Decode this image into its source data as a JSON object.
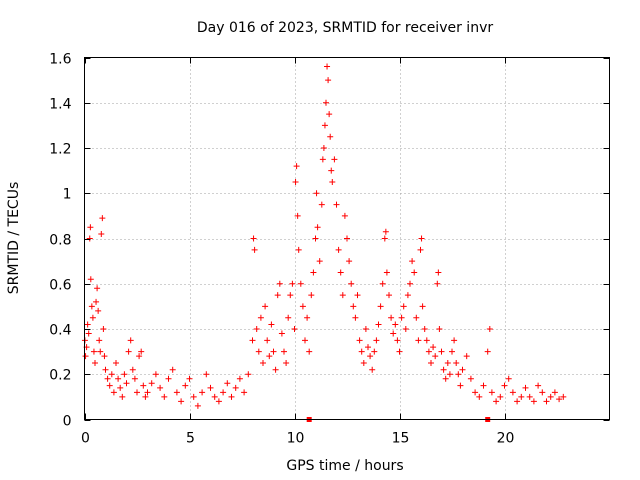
{
  "chart_data": {
    "type": "scatter",
    "title": "Day 016 of 2023, SRMTID for receiver invr",
    "xlabel": "GPS time / hours",
    "ylabel": "SRMTID / TECUs",
    "xlim": [
      0,
      25
    ],
    "ylim": [
      0,
      1.6
    ],
    "xticks": [
      0,
      5,
      10,
      15,
      20
    ],
    "xtick_labels": [
      "0",
      "5",
      "10",
      "15",
      "20"
    ],
    "yticks": [
      0,
      0.2,
      0.4,
      0.6,
      0.8,
      1.0,
      1.2,
      1.4,
      1.6
    ],
    "ytick_labels": [
      "0",
      "0.2",
      "0.4",
      "0.6",
      "0.8",
      "1",
      "1.2",
      "1.4",
      "1.6"
    ],
    "grid": true,
    "marker": "+",
    "color": "#ff0000",
    "square_markers_x": [
      10.7,
      19.2
    ],
    "series": [
      {
        "name": "SRMTID",
        "points": [
          [
            0.02,
            0.35
          ],
          [
            0.05,
            0.28
          ],
          [
            0.1,
            0.32
          ],
          [
            0.15,
            0.42
          ],
          [
            0.2,
            0.38
          ],
          [
            0.25,
            0.8
          ],
          [
            0.28,
            0.85
          ],
          [
            0.3,
            0.62
          ],
          [
            0.35,
            0.5
          ],
          [
            0.4,
            0.45
          ],
          [
            0.45,
            0.3
          ],
          [
            0.5,
            0.25
          ],
          [
            0.55,
            0.52
          ],
          [
            0.6,
            0.58
          ],
          [
            0.65,
            0.48
          ],
          [
            0.7,
            0.35
          ],
          [
            0.75,
            0.3
          ],
          [
            0.8,
            0.82
          ],
          [
            0.85,
            0.89
          ],
          [
            0.9,
            0.4
          ],
          [
            0.95,
            0.28
          ],
          [
            1.0,
            0.22
          ],
          [
            1.1,
            0.18
          ],
          [
            1.2,
            0.15
          ],
          [
            1.3,
            0.2
          ],
          [
            1.4,
            0.12
          ],
          [
            1.5,
            0.25
          ],
          [
            1.6,
            0.18
          ],
          [
            1.7,
            0.14
          ],
          [
            1.8,
            0.1
          ],
          [
            1.9,
            0.2
          ],
          [
            2.0,
            0.16
          ],
          [
            2.1,
            0.3
          ],
          [
            2.2,
            0.35
          ],
          [
            2.3,
            0.22
          ],
          [
            2.4,
            0.18
          ],
          [
            2.5,
            0.12
          ],
          [
            2.6,
            0.28
          ],
          [
            2.7,
            0.3
          ],
          [
            2.8,
            0.15
          ],
          [
            2.9,
            0.1
          ],
          [
            3.0,
            0.12
          ],
          [
            3.2,
            0.16
          ],
          [
            3.4,
            0.2
          ],
          [
            3.6,
            0.14
          ],
          [
            3.8,
            0.1
          ],
          [
            4.0,
            0.18
          ],
          [
            4.2,
            0.22
          ],
          [
            4.4,
            0.12
          ],
          [
            4.6,
            0.08
          ],
          [
            4.8,
            0.15
          ],
          [
            5.0,
            0.18
          ],
          [
            5.2,
            0.1
          ],
          [
            5.4,
            0.06
          ],
          [
            5.6,
            0.12
          ],
          [
            5.8,
            0.2
          ],
          [
            6.0,
            0.14
          ],
          [
            6.2,
            0.1
          ],
          [
            6.4,
            0.08
          ],
          [
            6.6,
            0.12
          ],
          [
            6.8,
            0.16
          ],
          [
            7.0,
            0.1
          ],
          [
            7.2,
            0.14
          ],
          [
            7.4,
            0.18
          ],
          [
            7.6,
            0.12
          ],
          [
            7.8,
            0.2
          ],
          [
            8.0,
            0.35
          ],
          [
            8.05,
            0.8
          ],
          [
            8.1,
            0.75
          ],
          [
            8.2,
            0.4
          ],
          [
            8.3,
            0.3
          ],
          [
            8.4,
            0.45
          ],
          [
            8.5,
            0.25
          ],
          [
            8.6,
            0.5
          ],
          [
            8.7,
            0.35
          ],
          [
            8.8,
            0.28
          ],
          [
            8.9,
            0.42
          ],
          [
            9.0,
            0.3
          ],
          [
            9.1,
            0.22
          ],
          [
            9.2,
            0.55
          ],
          [
            9.3,
            0.6
          ],
          [
            9.4,
            0.38
          ],
          [
            9.5,
            0.3
          ],
          [
            9.6,
            0.25
          ],
          [
            9.7,
            0.45
          ],
          [
            9.8,
            0.55
          ],
          [
            9.9,
            0.6
          ],
          [
            10.0,
            0.4
          ],
          [
            10.05,
            1.05
          ],
          [
            10.1,
            1.12
          ],
          [
            10.15,
            0.9
          ],
          [
            10.2,
            0.75
          ],
          [
            10.3,
            0.6
          ],
          [
            10.4,
            0.5
          ],
          [
            10.5,
            0.35
          ],
          [
            10.6,
            0.45
          ],
          [
            10.7,
            0.3
          ],
          [
            10.8,
            0.55
          ],
          [
            10.9,
            0.65
          ],
          [
            11.0,
            0.8
          ],
          [
            11.05,
            1.0
          ],
          [
            11.1,
            0.85
          ],
          [
            11.2,
            0.7
          ],
          [
            11.3,
            0.95
          ],
          [
            11.35,
            1.15
          ],
          [
            11.4,
            1.2
          ],
          [
            11.45,
            1.3
          ],
          [
            11.5,
            1.4
          ],
          [
            11.55,
            1.56
          ],
          [
            11.6,
            1.5
          ],
          [
            11.65,
            1.35
          ],
          [
            11.7,
            1.25
          ],
          [
            11.75,
            1.1
          ],
          [
            11.8,
            1.05
          ],
          [
            11.9,
            1.15
          ],
          [
            12.0,
            0.95
          ],
          [
            12.1,
            0.75
          ],
          [
            12.2,
            0.65
          ],
          [
            12.3,
            0.55
          ],
          [
            12.4,
            0.9
          ],
          [
            12.5,
            0.8
          ],
          [
            12.6,
            0.7
          ],
          [
            12.7,
            0.6
          ],
          [
            12.8,
            0.5
          ],
          [
            12.9,
            0.45
          ],
          [
            13.0,
            0.55
          ],
          [
            13.1,
            0.35
          ],
          [
            13.2,
            0.3
          ],
          [
            13.3,
            0.25
          ],
          [
            13.4,
            0.4
          ],
          [
            13.5,
            0.32
          ],
          [
            13.6,
            0.28
          ],
          [
            13.7,
            0.22
          ],
          [
            13.8,
            0.3
          ],
          [
            13.9,
            0.35
          ],
          [
            14.0,
            0.42
          ],
          [
            14.1,
            0.5
          ],
          [
            14.2,
            0.6
          ],
          [
            14.3,
            0.8
          ],
          [
            14.35,
            0.83
          ],
          [
            14.4,
            0.65
          ],
          [
            14.5,
            0.55
          ],
          [
            14.6,
            0.45
          ],
          [
            14.7,
            0.38
          ],
          [
            14.8,
            0.42
          ],
          [
            14.9,
            0.35
          ],
          [
            15.0,
            0.3
          ],
          [
            15.1,
            0.45
          ],
          [
            15.2,
            0.5
          ],
          [
            15.3,
            0.4
          ],
          [
            15.4,
            0.55
          ],
          [
            15.5,
            0.6
          ],
          [
            15.6,
            0.7
          ],
          [
            15.7,
            0.65
          ],
          [
            15.8,
            0.45
          ],
          [
            15.9,
            0.35
          ],
          [
            16.0,
            0.75
          ],
          [
            16.05,
            0.8
          ],
          [
            16.1,
            0.5
          ],
          [
            16.2,
            0.4
          ],
          [
            16.3,
            0.35
          ],
          [
            16.4,
            0.3
          ],
          [
            16.5,
            0.25
          ],
          [
            16.6,
            0.32
          ],
          [
            16.7,
            0.28
          ],
          [
            16.8,
            0.6
          ],
          [
            16.85,
            0.65
          ],
          [
            16.9,
            0.4
          ],
          [
            17.0,
            0.3
          ],
          [
            17.1,
            0.22
          ],
          [
            17.2,
            0.18
          ],
          [
            17.3,
            0.25
          ],
          [
            17.4,
            0.2
          ],
          [
            17.5,
            0.3
          ],
          [
            17.6,
            0.35
          ],
          [
            17.7,
            0.25
          ],
          [
            17.8,
            0.2
          ],
          [
            17.9,
            0.15
          ],
          [
            18.0,
            0.22
          ],
          [
            18.2,
            0.28
          ],
          [
            18.4,
            0.18
          ],
          [
            18.6,
            0.12
          ],
          [
            18.8,
            0.1
          ],
          [
            19.0,
            0.15
          ],
          [
            19.2,
            0.3
          ],
          [
            19.3,
            0.4
          ],
          [
            19.4,
            0.12
          ],
          [
            19.6,
            0.08
          ],
          [
            19.8,
            0.1
          ],
          [
            20.0,
            0.15
          ],
          [
            20.2,
            0.18
          ],
          [
            20.4,
            0.12
          ],
          [
            20.6,
            0.08
          ],
          [
            20.8,
            0.1
          ],
          [
            21.0,
            0.14
          ],
          [
            21.2,
            0.1
          ],
          [
            21.4,
            0.08
          ],
          [
            21.6,
            0.15
          ],
          [
            21.8,
            0.12
          ],
          [
            22.0,
            0.08
          ],
          [
            22.2,
            0.1
          ],
          [
            22.4,
            0.12
          ],
          [
            22.6,
            0.09
          ],
          [
            22.8,
            0.1
          ]
        ]
      }
    ]
  }
}
